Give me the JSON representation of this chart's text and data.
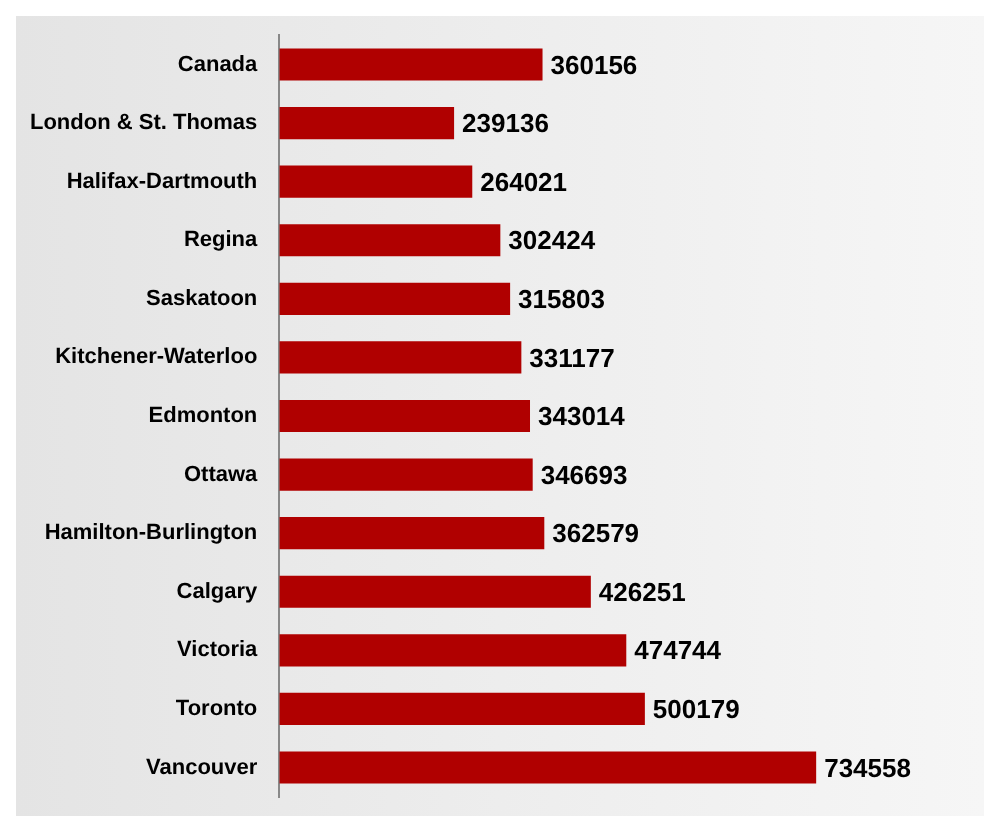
{
  "chart_data": {
    "type": "bar",
    "orientation": "horizontal",
    "categories": [
      "Canada",
      "London & St. Thomas",
      "Halifax-Dartmouth",
      "Regina",
      "Saskatoon",
      "Kitchener-Waterloo",
      "Edmonton",
      "Ottawa",
      "Hamilton-Burlington",
      "Calgary",
      "Victoria",
      "Toronto",
      "Vancouver"
    ],
    "values": [
      360156,
      239136,
      264021,
      302424,
      315803,
      331177,
      343014,
      346693,
      362579,
      426251,
      474744,
      500179,
      734558
    ],
    "color": "#b00000",
    "data_labels": true
  }
}
